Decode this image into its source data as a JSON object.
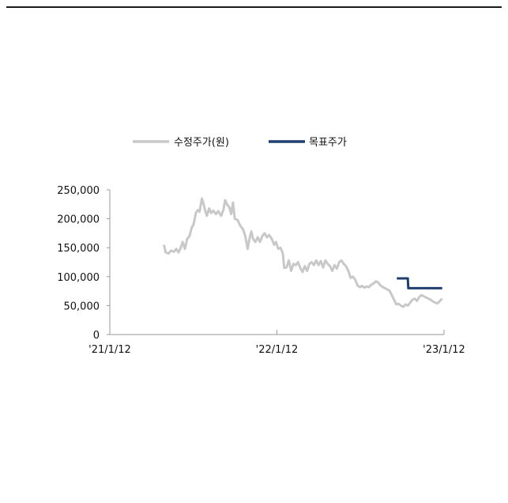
{
  "chart_data": {
    "type": "line",
    "title": "",
    "xlabel": "",
    "ylabel": "",
    "ylim": [
      0,
      250000
    ],
    "yticks": [
      0,
      50000,
      100000,
      150000,
      200000,
      250000
    ],
    "ytick_labels": [
      "0",
      "50,000",
      "100,000",
      "150,000",
      "200,000",
      "250,000"
    ],
    "xtick_labels": [
      "'21/1/12",
      "'22/1/12",
      "'23/1/12"
    ],
    "x_range": [
      "2021-01-12",
      "2023-01-12"
    ],
    "legend_position": "top-center",
    "grid": false,
    "series": [
      {
        "name": "수정주가(원)",
        "color": "#c8c8c8",
        "points": [
          [
            "2021-05-10",
            155000
          ],
          [
            "2021-05-14",
            142000
          ],
          [
            "2021-05-20",
            140000
          ],
          [
            "2021-05-26",
            145000
          ],
          [
            "2021-06-01",
            143000
          ],
          [
            "2021-06-06",
            148000
          ],
          [
            "2021-06-11",
            142000
          ],
          [
            "2021-06-16",
            150000
          ],
          [
            "2021-06-20",
            160000
          ],
          [
            "2021-06-25",
            148000
          ],
          [
            "2021-06-30",
            165000
          ],
          [
            "2021-07-05",
            170000
          ],
          [
            "2021-07-10",
            185000
          ],
          [
            "2021-07-14",
            190000
          ],
          [
            "2021-07-19",
            210000
          ],
          [
            "2021-07-23",
            215000
          ],
          [
            "2021-07-27",
            212000
          ],
          [
            "2021-08-01",
            235000
          ],
          [
            "2021-08-04",
            228000
          ],
          [
            "2021-08-08",
            215000
          ],
          [
            "2021-08-12",
            205000
          ],
          [
            "2021-08-17",
            218000
          ],
          [
            "2021-08-21",
            210000
          ],
          [
            "2021-08-26",
            214000
          ],
          [
            "2021-09-01",
            208000
          ],
          [
            "2021-09-06",
            213000
          ],
          [
            "2021-09-12",
            205000
          ],
          [
            "2021-09-17",
            215000
          ],
          [
            "2021-09-21",
            232000
          ],
          [
            "2021-09-25",
            225000
          ],
          [
            "2021-09-30",
            220000
          ],
          [
            "2021-10-04",
            208000
          ],
          [
            "2021-10-08",
            228000
          ],
          [
            "2021-10-12",
            200000
          ],
          [
            "2021-10-18",
            198000
          ],
          [
            "2021-10-24",
            188000
          ],
          [
            "2021-10-30",
            182000
          ],
          [
            "2021-11-04",
            170000
          ],
          [
            "2021-11-09",
            148000
          ],
          [
            "2021-11-13",
            165000
          ],
          [
            "2021-11-17",
            178000
          ],
          [
            "2021-11-21",
            165000
          ],
          [
            "2021-11-26",
            160000
          ],
          [
            "2021-12-01",
            168000
          ],
          [
            "2021-12-06",
            160000
          ],
          [
            "2021-12-11",
            170000
          ],
          [
            "2021-12-16",
            175000
          ],
          [
            "2021-12-21",
            168000
          ],
          [
            "2021-12-26",
            172000
          ],
          [
            "2022-01-01",
            165000
          ],
          [
            "2022-01-06",
            155000
          ],
          [
            "2022-01-10",
            160000
          ],
          [
            "2022-01-15",
            148000
          ],
          [
            "2022-01-20",
            150000
          ],
          [
            "2022-01-25",
            140000
          ],
          [
            "2022-01-28",
            115000
          ],
          [
            "2022-02-02",
            116000
          ],
          [
            "2022-02-07",
            128000
          ],
          [
            "2022-02-12",
            110000
          ],
          [
            "2022-02-17",
            122000
          ],
          [
            "2022-02-22",
            120000
          ],
          [
            "2022-02-27",
            125000
          ],
          [
            "2022-03-04",
            115000
          ],
          [
            "2022-03-09",
            108000
          ],
          [
            "2022-03-14",
            118000
          ],
          [
            "2022-03-19",
            110000
          ],
          [
            "2022-03-24",
            122000
          ],
          [
            "2022-03-29",
            125000
          ],
          [
            "2022-04-03",
            120000
          ],
          [
            "2022-04-08",
            128000
          ],
          [
            "2022-04-13",
            120000
          ],
          [
            "2022-04-18",
            127000
          ],
          [
            "2022-04-23",
            116000
          ],
          [
            "2022-04-28",
            128000
          ],
          [
            "2022-05-03",
            122000
          ],
          [
            "2022-05-08",
            118000
          ],
          [
            "2022-05-13",
            110000
          ],
          [
            "2022-05-18",
            120000
          ],
          [
            "2022-05-23",
            114000
          ],
          [
            "2022-05-28",
            125000
          ],
          [
            "2022-06-02",
            128000
          ],
          [
            "2022-06-07",
            122000
          ],
          [
            "2022-06-12",
            118000
          ],
          [
            "2022-06-17",
            110000
          ],
          [
            "2022-06-22",
            98000
          ],
          [
            "2022-06-27",
            100000
          ],
          [
            "2022-07-02",
            95000
          ],
          [
            "2022-07-07",
            85000
          ],
          [
            "2022-07-12",
            82000
          ],
          [
            "2022-07-17",
            84000
          ],
          [
            "2022-07-22",
            81000
          ],
          [
            "2022-07-27",
            83000
          ],
          [
            "2022-08-01",
            82000
          ],
          [
            "2022-08-06",
            86000
          ],
          [
            "2022-08-11",
            88000
          ],
          [
            "2022-08-16",
            92000
          ],
          [
            "2022-08-21",
            90000
          ],
          [
            "2022-08-26",
            85000
          ],
          [
            "2022-08-31",
            82000
          ],
          [
            "2022-09-05",
            80000
          ],
          [
            "2022-09-10",
            78000
          ],
          [
            "2022-09-15",
            76000
          ],
          [
            "2022-09-20",
            68000
          ],
          [
            "2022-09-25",
            60000
          ],
          [
            "2022-09-30",
            52000
          ],
          [
            "2022-10-05",
            53000
          ],
          [
            "2022-10-10",
            50000
          ],
          [
            "2022-10-15",
            48000
          ],
          [
            "2022-10-20",
            52000
          ],
          [
            "2022-10-25",
            50000
          ],
          [
            "2022-10-30",
            55000
          ],
          [
            "2022-11-04",
            60000
          ],
          [
            "2022-11-09",
            62000
          ],
          [
            "2022-11-14",
            58000
          ],
          [
            "2022-11-19",
            65000
          ],
          [
            "2022-11-24",
            68000
          ],
          [
            "2022-11-29",
            66000
          ],
          [
            "2022-12-04",
            64000
          ],
          [
            "2022-12-09",
            62000
          ],
          [
            "2022-12-14",
            60000
          ],
          [
            "2022-12-19",
            57000
          ],
          [
            "2022-12-24",
            55000
          ],
          [
            "2022-12-29",
            54000
          ],
          [
            "2023-01-03",
            58000
          ],
          [
            "2023-01-08",
            62000
          ]
        ]
      },
      {
        "name": "목표주가",
        "color": "#1f3f6e",
        "points": [
          [
            "2022-10-01",
            97000
          ],
          [
            "2022-10-25",
            97000
          ],
          [
            "2022-10-26",
            80000
          ],
          [
            "2023-01-08",
            80000
          ]
        ]
      }
    ]
  }
}
